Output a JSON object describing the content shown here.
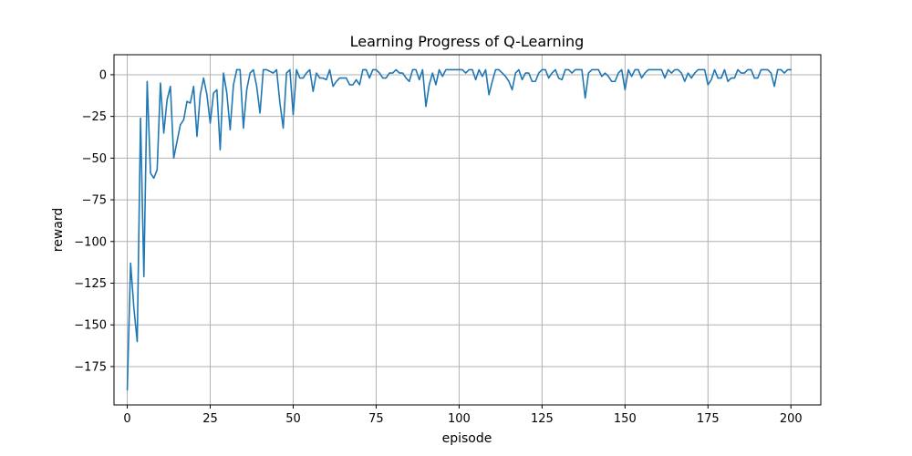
{
  "chart_data": {
    "type": "line",
    "title": "Learning Progress of Q-Learning",
    "xlabel": "episode",
    "ylabel": "reward",
    "xlim": [
      -4,
      209
    ],
    "ylim": [
      -198,
      12
    ],
    "xticks": [
      0,
      25,
      50,
      75,
      100,
      125,
      150,
      175,
      200
    ],
    "yticks": [
      0,
      -25,
      -50,
      -75,
      -100,
      -125,
      -150,
      -175
    ],
    "xtick_labels": [
      "0",
      "25",
      "50",
      "75",
      "100",
      "125",
      "150",
      "175",
      "200"
    ],
    "ytick_labels": [
      "0",
      "−25",
      "−50",
      "−75",
      "−100",
      "−125",
      "−150",
      "−175"
    ],
    "grid": true,
    "line_color": "#1f77b4",
    "grid_color": "#b0b0b0",
    "series": [
      {
        "values": [
          -189,
          -113,
          -140,
          -160,
          -26,
          -121,
          -4,
          -59,
          -62,
          -57,
          -5,
          -35,
          -15,
          -7,
          -50,
          -40,
          -30,
          -27,
          -16,
          -17,
          -7,
          -37,
          -12,
          -2,
          -12,
          -29,
          -11,
          -9,
          -45,
          1,
          -11,
          -33,
          -6,
          3,
          3,
          -32,
          -9,
          1,
          3,
          -7,
          -23,
          3,
          3,
          2,
          1,
          3,
          -17,
          -32,
          1,
          3,
          -24,
          3,
          -2,
          -2,
          1,
          3,
          -10,
          1,
          -2,
          -2,
          -3,
          3,
          -7,
          -4,
          -2,
          -2,
          -2,
          -6,
          -6,
          -3,
          -6,
          3,
          3,
          -2,
          3,
          3,
          1,
          -2,
          -2,
          1,
          1,
          3,
          1,
          1,
          -2,
          -4,
          3,
          3,
          -3,
          3,
          -19,
          -6,
          1,
          -6,
          3,
          -1,
          3,
          3,
          3,
          3,
          3,
          3,
          1,
          3,
          3,
          -3,
          3,
          -1,
          3,
          -12,
          -4,
          3,
          3,
          1,
          -1,
          -4,
          -9,
          1,
          3,
          -3,
          1,
          1,
          -4,
          -4,
          1,
          3,
          3,
          -2,
          1,
          3,
          -2,
          -3,
          3,
          3,
          1,
          3,
          3,
          3,
          -14,
          1,
          3,
          3,
          3,
          -1,
          1,
          -1,
          -4,
          -4,
          1,
          3,
          -9,
          3,
          -1,
          3,
          3,
          -2,
          1,
          3,
          3,
          3,
          3,
          3,
          -2,
          3,
          1,
          3,
          3,
          1,
          -4,
          1,
          -2,
          1,
          3,
          3,
          3,
          -6,
          -3,
          3,
          -2,
          -2,
          3,
          -4,
          -2,
          -2,
          3,
          1,
          1,
          3,
          3,
          -2,
          -2,
          3,
          3,
          3,
          1,
          -7,
          3,
          3,
          1,
          3,
          3
        ]
      }
    ]
  }
}
